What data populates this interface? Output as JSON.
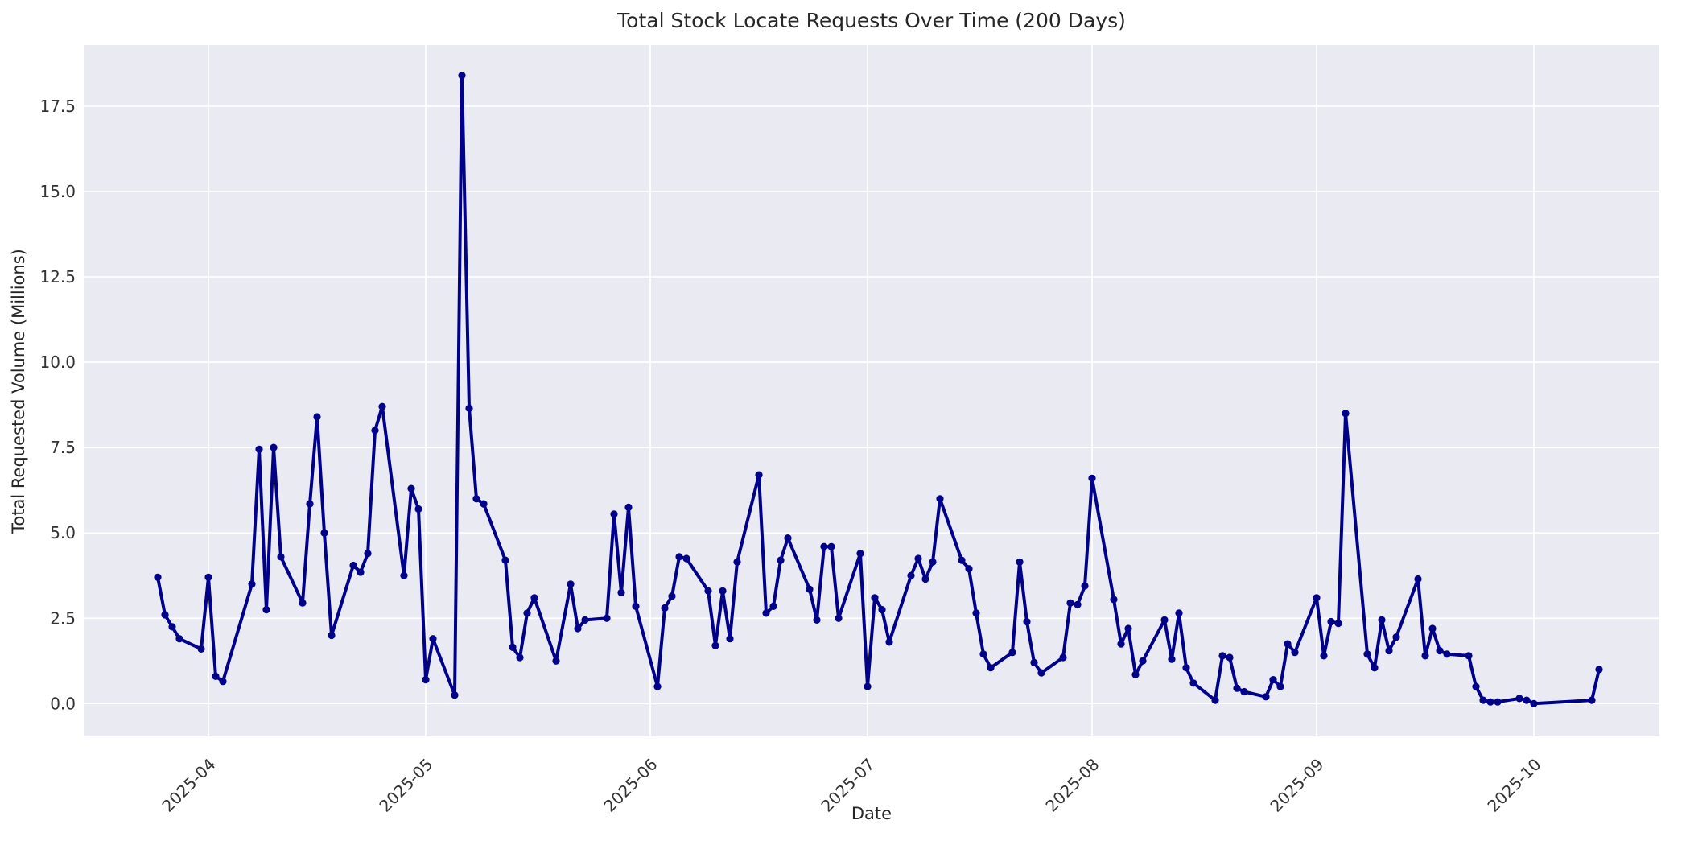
{
  "title": "Total Stock Locate Requests Over Time (200 Days)",
  "chart_data": {
    "type": "line",
    "title": "Total Stock Locate Requests Over Time (200 Days)",
    "xlabel": "Date",
    "ylabel": "Total Requested Volume (Millions)",
    "legend": "none",
    "grid": "on-white",
    "plot_background": "#eaeaf2",
    "figure_background": "#ffffff",
    "line_color": "#00008b",
    "marker": "circle",
    "ylim": [
      -0.95,
      19.3
    ],
    "y_tick_labels": [
      "0.0",
      "2.5",
      "5.0",
      "7.5",
      "10.0",
      "12.5",
      "15.0",
      "17.5"
    ],
    "y_tick_values": [
      0,
      2.5,
      5,
      7.5,
      10,
      12.5,
      15,
      17.5
    ],
    "x_ticks": [
      {
        "label": "2025-04",
        "date": "2025-04-01"
      },
      {
        "label": "2025-05",
        "date": "2025-05-01"
      },
      {
        "label": "2025-06",
        "date": "2025-06-01"
      },
      {
        "label": "2025-07",
        "date": "2025-07-01"
      },
      {
        "label": "2025-08",
        "date": "2025-08-01"
      },
      {
        "label": "2025-09",
        "date": "2025-09-01"
      },
      {
        "label": "2025-10",
        "date": "2025-10-01"
      }
    ],
    "series": [
      {
        "name": "Total Stock Locate Requests",
        "color": "#00008b",
        "points": [
          {
            "date": "2025-03-25",
            "value": 3.7
          },
          {
            "date": "2025-03-26",
            "value": 2.6
          },
          {
            "date": "2025-03-27",
            "value": 2.25
          },
          {
            "date": "2025-03-28",
            "value": 1.9
          },
          {
            "date": "2025-03-31",
            "value": 1.6
          },
          {
            "date": "2025-04-01",
            "value": 3.7
          },
          {
            "date": "2025-04-02",
            "value": 0.8
          },
          {
            "date": "2025-04-03",
            "value": 0.65
          },
          {
            "date": "2025-04-07",
            "value": 3.5
          },
          {
            "date": "2025-04-08",
            "value": 7.45
          },
          {
            "date": "2025-04-09",
            "value": 2.75
          },
          {
            "date": "2025-04-10",
            "value": 7.5
          },
          {
            "date": "2025-04-11",
            "value": 4.3
          },
          {
            "date": "2025-04-14",
            "value": 2.95
          },
          {
            "date": "2025-04-15",
            "value": 5.85
          },
          {
            "date": "2025-04-16",
            "value": 8.4
          },
          {
            "date": "2025-04-17",
            "value": 5.0
          },
          {
            "date": "2025-04-18",
            "value": 2.0
          },
          {
            "date": "2025-04-21",
            "value": 4.05
          },
          {
            "date": "2025-04-22",
            "value": 3.85
          },
          {
            "date": "2025-04-23",
            "value": 4.4
          },
          {
            "date": "2025-04-24",
            "value": 8.0
          },
          {
            "date": "2025-04-25",
            "value": 8.7
          },
          {
            "date": "2025-04-28",
            "value": 3.75
          },
          {
            "date": "2025-04-29",
            "value": 6.3
          },
          {
            "date": "2025-04-30",
            "value": 5.7
          },
          {
            "date": "2025-05-01",
            "value": 0.7
          },
          {
            "date": "2025-05-02",
            "value": 1.9
          },
          {
            "date": "2025-05-05",
            "value": 0.25
          },
          {
            "date": "2025-05-06",
            "value": 18.4
          },
          {
            "date": "2025-05-07",
            "value": 8.65
          },
          {
            "date": "2025-05-08",
            "value": 6.0
          },
          {
            "date": "2025-05-09",
            "value": 5.85
          },
          {
            "date": "2025-05-12",
            "value": 4.2
          },
          {
            "date": "2025-05-13",
            "value": 1.65
          },
          {
            "date": "2025-05-14",
            "value": 1.35
          },
          {
            "date": "2025-05-15",
            "value": 2.65
          },
          {
            "date": "2025-05-16",
            "value": 3.1
          },
          {
            "date": "2025-05-19",
            "value": 1.25
          },
          {
            "date": "2025-05-21",
            "value": 3.5
          },
          {
            "date": "2025-05-22",
            "value": 2.2
          },
          {
            "date": "2025-05-23",
            "value": 2.45
          },
          {
            "date": "2025-05-26",
            "value": 2.5
          },
          {
            "date": "2025-05-27",
            "value": 5.55
          },
          {
            "date": "2025-05-28",
            "value": 3.25
          },
          {
            "date": "2025-05-29",
            "value": 5.75
          },
          {
            "date": "2025-05-30",
            "value": 2.85
          },
          {
            "date": "2025-06-02",
            "value": 0.5
          },
          {
            "date": "2025-06-03",
            "value": 2.8
          },
          {
            "date": "2025-06-04",
            "value": 3.15
          },
          {
            "date": "2025-06-05",
            "value": 4.3
          },
          {
            "date": "2025-06-06",
            "value": 4.25
          },
          {
            "date": "2025-06-09",
            "value": 3.3
          },
          {
            "date": "2025-06-10",
            "value": 1.7
          },
          {
            "date": "2025-06-11",
            "value": 3.3
          },
          {
            "date": "2025-06-12",
            "value": 1.9
          },
          {
            "date": "2025-06-13",
            "value": 4.15
          },
          {
            "date": "2025-06-16",
            "value": 6.7
          },
          {
            "date": "2025-06-17",
            "value": 2.65
          },
          {
            "date": "2025-06-18",
            "value": 2.85
          },
          {
            "date": "2025-06-19",
            "value": 4.2
          },
          {
            "date": "2025-06-20",
            "value": 4.85
          },
          {
            "date": "2025-06-23",
            "value": 3.35
          },
          {
            "date": "2025-06-24",
            "value": 2.45
          },
          {
            "date": "2025-06-25",
            "value": 4.6
          },
          {
            "date": "2025-06-26",
            "value": 4.6
          },
          {
            "date": "2025-06-27",
            "value": 2.5
          },
          {
            "date": "2025-06-30",
            "value": 4.4
          },
          {
            "date": "2025-07-01",
            "value": 0.5
          },
          {
            "date": "2025-07-02",
            "value": 3.1
          },
          {
            "date": "2025-07-03",
            "value": 2.75
          },
          {
            "date": "2025-07-04",
            "value": 1.8
          },
          {
            "date": "2025-07-07",
            "value": 3.75
          },
          {
            "date": "2025-07-08",
            "value": 4.25
          },
          {
            "date": "2025-07-09",
            "value": 3.65
          },
          {
            "date": "2025-07-10",
            "value": 4.15
          },
          {
            "date": "2025-07-11",
            "value": 6.0
          },
          {
            "date": "2025-07-14",
            "value": 4.2
          },
          {
            "date": "2025-07-15",
            "value": 3.95
          },
          {
            "date": "2025-07-16",
            "value": 2.65
          },
          {
            "date": "2025-07-17",
            "value": 1.45
          },
          {
            "date": "2025-07-18",
            "value": 1.05
          },
          {
            "date": "2025-07-21",
            "value": 1.5
          },
          {
            "date": "2025-07-22",
            "value": 4.15
          },
          {
            "date": "2025-07-23",
            "value": 2.4
          },
          {
            "date": "2025-07-24",
            "value": 1.2
          },
          {
            "date": "2025-07-25",
            "value": 0.9
          },
          {
            "date": "2025-07-28",
            "value": 1.35
          },
          {
            "date": "2025-07-29",
            "value": 2.95
          },
          {
            "date": "2025-07-30",
            "value": 2.9
          },
          {
            "date": "2025-07-31",
            "value": 3.45
          },
          {
            "date": "2025-08-01",
            "value": 6.6
          },
          {
            "date": "2025-08-04",
            "value": 3.05
          },
          {
            "date": "2025-08-05",
            "value": 1.75
          },
          {
            "date": "2025-08-06",
            "value": 2.2
          },
          {
            "date": "2025-08-07",
            "value": 0.85
          },
          {
            "date": "2025-08-08",
            "value": 1.25
          },
          {
            "date": "2025-08-11",
            "value": 2.45
          },
          {
            "date": "2025-08-12",
            "value": 1.3
          },
          {
            "date": "2025-08-13",
            "value": 2.65
          },
          {
            "date": "2025-08-14",
            "value": 1.05
          },
          {
            "date": "2025-08-15",
            "value": 0.6
          },
          {
            "date": "2025-08-18",
            "value": 0.1
          },
          {
            "date": "2025-08-19",
            "value": 1.4
          },
          {
            "date": "2025-08-20",
            "value": 1.35
          },
          {
            "date": "2025-08-21",
            "value": 0.45
          },
          {
            "date": "2025-08-22",
            "value": 0.35
          },
          {
            "date": "2025-08-25",
            "value": 0.2
          },
          {
            "date": "2025-08-26",
            "value": 0.7
          },
          {
            "date": "2025-08-27",
            "value": 0.5
          },
          {
            "date": "2025-08-28",
            "value": 1.75
          },
          {
            "date": "2025-08-29",
            "value": 1.5
          },
          {
            "date": "2025-09-01",
            "value": 3.1
          },
          {
            "date": "2025-09-02",
            "value": 1.4
          },
          {
            "date": "2025-09-03",
            "value": 2.4
          },
          {
            "date": "2025-09-04",
            "value": 2.35
          },
          {
            "date": "2025-09-05",
            "value": 8.5
          },
          {
            "date": "2025-09-08",
            "value": 1.45
          },
          {
            "date": "2025-09-09",
            "value": 1.05
          },
          {
            "date": "2025-09-10",
            "value": 2.45
          },
          {
            "date": "2025-09-11",
            "value": 1.55
          },
          {
            "date": "2025-09-12",
            "value": 1.95
          },
          {
            "date": "2025-09-15",
            "value": 3.65
          },
          {
            "date": "2025-09-16",
            "value": 1.4
          },
          {
            "date": "2025-09-17",
            "value": 2.2
          },
          {
            "date": "2025-09-18",
            "value": 1.55
          },
          {
            "date": "2025-09-19",
            "value": 1.45
          },
          {
            "date": "2025-09-22",
            "value": 1.4
          },
          {
            "date": "2025-09-23",
            "value": 0.5
          },
          {
            "date": "2025-09-24",
            "value": 0.1
          },
          {
            "date": "2025-09-25",
            "value": 0.05
          },
          {
            "date": "2025-09-26",
            "value": 0.05
          },
          {
            "date": "2025-09-29",
            "value": 0.15
          },
          {
            "date": "2025-09-30",
            "value": 0.1
          },
          {
            "date": "2025-10-01",
            "value": 0.0
          },
          {
            "date": "2025-10-09",
            "value": 0.1
          },
          {
            "date": "2025-10-10",
            "value": 1.0
          }
        ]
      }
    ]
  }
}
